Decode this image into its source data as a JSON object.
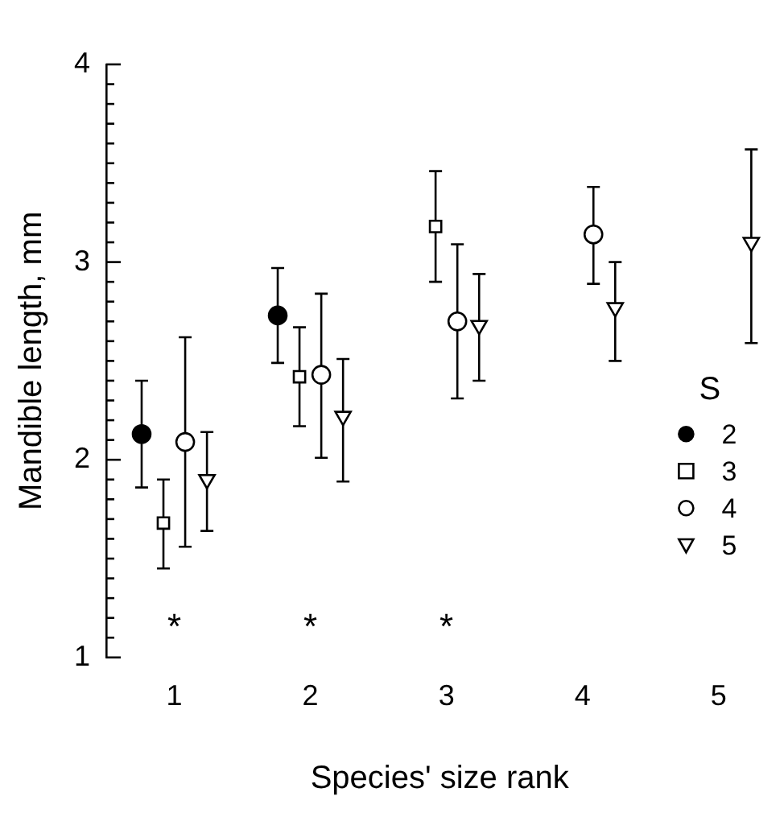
{
  "chart_data": {
    "type": "scatter",
    "xlabel": "Species' size rank",
    "ylabel": "Mandible length, mm",
    "legend_title": "S",
    "legend": "bottom right",
    "categories": [
      "1",
      "2",
      "3",
      "4",
      "5"
    ],
    "ylim": [
      1,
      4
    ],
    "yticks": [
      1,
      {
        "value": 1.1,
        "label": null
      },
      {
        "value": 1.2,
        "label": null
      },
      {
        "value": 1.3,
        "label": null
      },
      {
        "value": 1.4,
        "label": null
      },
      {
        "value": 1.5,
        "label": null
      },
      {
        "value": 1.6,
        "label": null
      },
      {
        "value": 1.7,
        "label": null
      },
      {
        "value": 1.8,
        "label": null
      },
      {
        "value": 1.9,
        "label": null
      },
      2,
      {
        "value": 2.1,
        "label": null
      },
      {
        "value": 2.2,
        "label": null
      },
      {
        "value": 2.3,
        "label": null
      },
      {
        "value": 2.4,
        "label": null
      },
      {
        "value": 2.5,
        "label": null
      },
      {
        "value": 2.6,
        "label": null
      },
      {
        "value": 2.7,
        "label": null
      },
      {
        "value": 2.8,
        "label": null
      },
      {
        "value": 2.9,
        "label": null
      },
      3,
      {
        "value": 3.1,
        "label": null
      },
      {
        "value": 3.2,
        "label": null
      },
      {
        "value": 3.3,
        "label": null
      },
      {
        "value": 3.4,
        "label": null
      },
      {
        "value": 3.5,
        "label": null
      },
      {
        "value": 3.6,
        "label": null
      },
      {
        "value": 3.7,
        "label": null
      },
      {
        "value": 3.8,
        "label": null
      },
      {
        "value": 3.9,
        "label": null
      },
      4
    ],
    "grid": false,
    "series": [
      {
        "name": "2",
        "color": "#000000",
        "marker": "circle",
        "values": [
          2.13,
          2.73,
          null,
          null,
          null
        ],
        "errors": [
          [
            1.86,
            2.4
          ],
          [
            2.49,
            2.97
          ],
          null,
          null,
          null
        ]
      },
      {
        "name": "3",
        "color": "#000000",
        "marker": "square",
        "values": [
          1.68,
          2.42,
          3.18,
          null,
          null
        ],
        "errors": [
          [
            1.45,
            1.9
          ],
          [
            2.17,
            2.67
          ],
          [
            2.9,
            3.46
          ],
          null,
          null
        ]
      },
      {
        "name": "4",
        "color": "#000000",
        "marker": "circle",
        "values": [
          2.09,
          2.43,
          2.7,
          3.14,
          null
        ],
        "errors": [
          [
            1.56,
            2.62
          ],
          [
            2.01,
            2.84
          ],
          [
            2.31,
            3.09
          ],
          [
            2.89,
            3.38
          ],
          null
        ]
      },
      {
        "name": "5",
        "color": "#000000",
        "marker": "triangle",
        "values": [
          1.9,
          2.22,
          2.68,
          2.77,
          3.1
        ],
        "errors": [
          [
            1.64,
            2.14
          ],
          [
            1.89,
            2.51
          ],
          [
            2.4,
            2.94
          ],
          [
            2.5,
            3.0
          ],
          [
            2.59,
            3.57
          ]
        ]
      }
    ],
    "annotations": [
      "*",
      "*",
      "*"
    ]
  }
}
